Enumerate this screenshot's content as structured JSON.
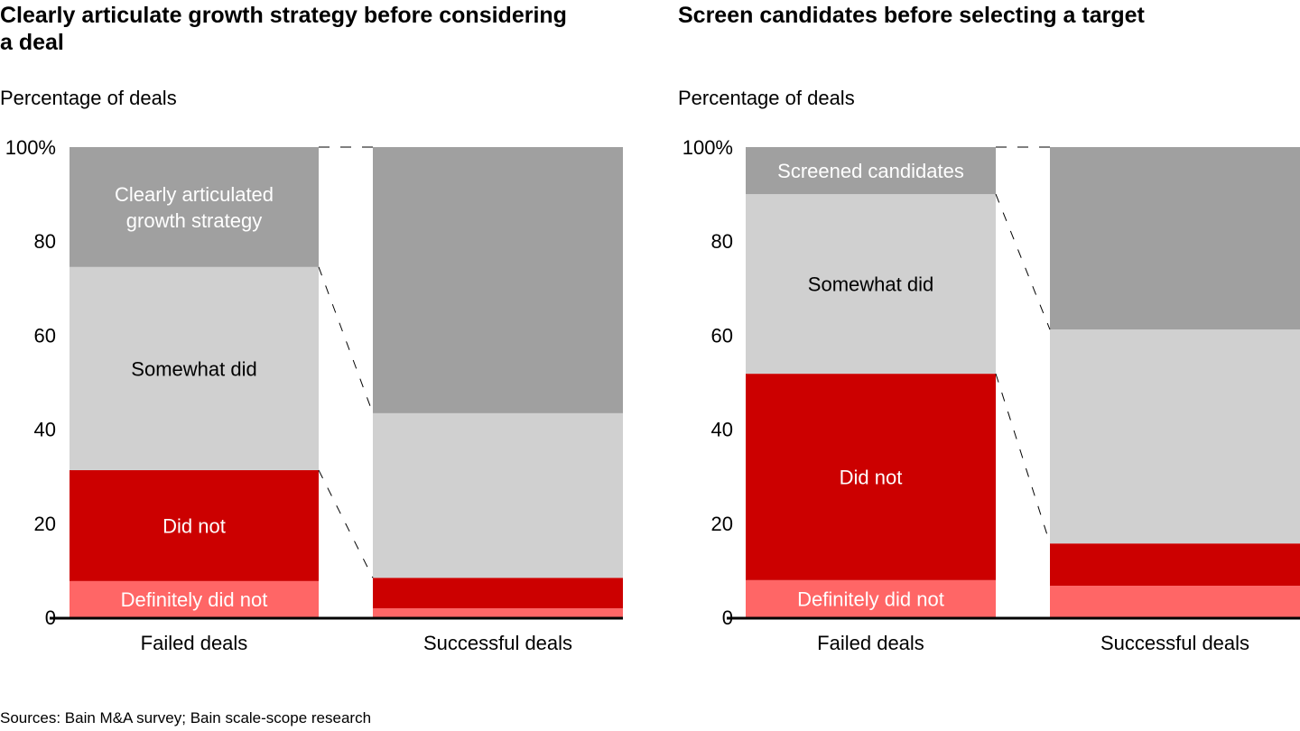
{
  "colors": {
    "definitely_did_not": "#ff6666",
    "did_not": "#cc0000",
    "somewhat_did": "#d0d0d0",
    "did": "#a0a0a0",
    "axis": "#000000",
    "label_light": "#ffffff",
    "label_dark": "#000000"
  },
  "source": "Sources: Bain M&A survey; Bain scale-scope research",
  "chart_data": [
    {
      "type": "bar",
      "stacked": true,
      "title": "Clearly articulate growth strategy before considering a deal",
      "ylabel": "Percentage of deals",
      "xlabel": "",
      "ylim": [
        0,
        100
      ],
      "yticks": [
        "0",
        "20",
        "40",
        "60",
        "80",
        "100%"
      ],
      "categories": [
        "Failed deals",
        "Successful deals"
      ],
      "series": [
        {
          "name": "Definitely did not",
          "key": "definitely_did_not",
          "values": [
            7.7,
            1.9
          ],
          "label_on": 0,
          "label_color": "label_light"
        },
        {
          "name": "Did not",
          "key": "did_not",
          "values": [
            23.6,
            6.5
          ],
          "label_on": 0,
          "label_color": "label_light"
        },
        {
          "name": "Somewhat did",
          "key": "somewhat_did",
          "values": [
            43.2,
            35.0
          ],
          "label_on": 0,
          "label_color": "label_dark"
        },
        {
          "name": "Clearly articulated growth strategy",
          "key": "did",
          "values": [
            25.5,
            56.6
          ],
          "label_on": 0,
          "label_color": "label_light",
          "label_lines": [
            "Clearly articulated",
            "growth strategy"
          ]
        }
      ],
      "grid": false,
      "connector_lines": "dashed"
    },
    {
      "type": "bar",
      "stacked": true,
      "title": "Screen candidates before selecting a target",
      "ylabel": "Percentage of deals",
      "xlabel": "",
      "ylim": [
        0,
        100
      ],
      "yticks": [
        "0",
        "20",
        "40",
        "60",
        "80",
        "100%"
      ],
      "categories": [
        "Failed deals",
        "Successful deals"
      ],
      "series": [
        {
          "name": "Definitely did not",
          "key": "definitely_did_not",
          "values": [
            7.9,
            6.7
          ],
          "label_on": 0,
          "label_color": "label_light"
        },
        {
          "name": "Did not",
          "key": "did_not",
          "values": [
            43.9,
            9.0
          ],
          "label_on": 0,
          "label_color": "label_light"
        },
        {
          "name": "Somewhat did",
          "key": "somewhat_did",
          "values": [
            38.2,
            45.5
          ],
          "label_on": 0,
          "label_color": "label_dark"
        },
        {
          "name": "Screened candidates",
          "key": "did",
          "values": [
            10.0,
            38.8
          ],
          "label_on": 0,
          "label_color": "label_light"
        }
      ],
      "grid": false,
      "connector_lines": "dashed"
    }
  ]
}
